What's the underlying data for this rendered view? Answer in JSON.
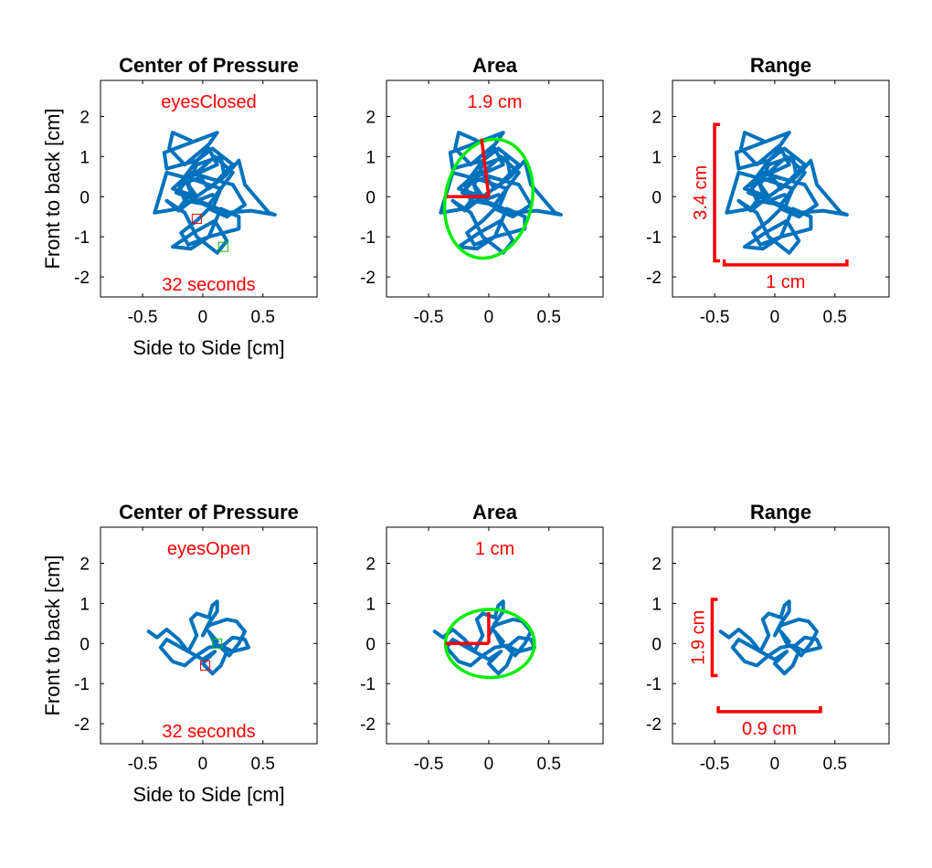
{
  "figure": {
    "colors": {
      "trace": "#0072bd",
      "annotation": "#ff0000",
      "ellipse": "#00ee00",
      "start_marker": "#ff0000",
      "end_marker": "#00c000",
      "axes": "#000000"
    }
  },
  "chart_data": [
    {
      "type": "line",
      "row": 0,
      "col": 0,
      "title": "Center of Pressure",
      "condition_label": "eyesClosed",
      "duration_label": "32 seconds",
      "xlabel": "Side to Side [cm]",
      "ylabel": "Front to back [cm]",
      "xlim": [
        -0.85,
        0.95
      ],
      "ylim": [
        -2.5,
        2.9
      ],
      "xticks": [
        {
          "v": -0.5,
          "label": "-0.5"
        },
        {
          "v": 0,
          "label": "0"
        },
        {
          "v": 0.5,
          "label": "0.5"
        }
      ],
      "yticks": [
        {
          "v": 2,
          "label": "2"
        },
        {
          "v": 1,
          "label": "1"
        },
        {
          "v": 0,
          "label": "0"
        },
        {
          "v": -1,
          "label": "-1"
        },
        {
          "v": -2,
          "label": "-2"
        }
      ],
      "series": [
        {
          "x": [
            -0.1,
            -0.25,
            -0.28,
            -0.15,
            0.05,
            0.12,
            -0.05,
            -0.32,
            -0.3,
            -0.05,
            0.08,
            0.25,
            0.12,
            -0.1,
            -0.25,
            -0.05,
            0.18,
            0.3,
            0.35,
            0.55,
            0.6,
            0.4,
            0.2,
            0.05,
            -0.15,
            -0.2,
            0.0,
            0.25,
            0.35,
            0.2,
            0.05,
            -0.05,
            -0.18,
            -0.12,
            0.05,
            0.3,
            0.3,
            0.15,
            0.05,
            -0.1,
            -0.25,
            -0.08,
            0.1,
            0.2,
            0.12,
            -0.05,
            -0.15,
            -0.3,
            -0.2,
            -0.05,
            -0.12,
            -0.05,
            0.15,
            0.18,
            0.05,
            -0.05,
            0.1,
            0.25,
            0.15,
            -0.05,
            -0.3,
            -0.4,
            -0.2,
            -0.1,
            -0.15,
            -0.05,
            0.05,
            0.12,
            -0.1,
            -0.22,
            0.05,
            0.15,
            0.08,
            -0.05,
            0.08
          ],
          "y": [
            1.4,
            1.6,
            1.2,
            0.8,
            1.3,
            1.6,
            1.4,
            1.1,
            0.7,
            0.9,
            1.2,
            0.8,
            0.4,
            0.6,
            0.2,
            0.0,
            0.5,
            0.9,
            0.3,
            -0.4,
            -0.45,
            -0.35,
            -0.4,
            -0.2,
            -0.1,
            0.3,
            0.5,
            0.3,
            -0.2,
            -0.5,
            -0.3,
            -0.6,
            -0.9,
            -1.2,
            -1.0,
            -0.8,
            -0.5,
            -0.3,
            -1.0,
            -1.3,
            -1.25,
            -0.9,
            -0.6,
            -1.1,
            -1.4,
            -1.0,
            -0.4,
            -0.1,
            -0.35,
            0.0,
            0.3,
            0.8,
            1.0,
            0.5,
            0.2,
            0.6,
            1.0,
            0.6,
            0.2,
            0.4,
            0.6,
            -0.4,
            -0.3,
            0.1,
            0.5,
            0.9,
            1.2,
            0.8,
            0.5,
            0.1,
            -0.2,
            0.2,
            -0.3,
            -0.1,
            0.05
          ]
        }
      ],
      "start_point": [
        -0.05,
        -0.55
      ],
      "end_point": [
        0.17,
        -1.25
      ]
    },
    {
      "type": "line",
      "row": 0,
      "col": 1,
      "title": "Area",
      "value_label": "1.9 cm",
      "xlim": [
        -0.85,
        0.95
      ],
      "ylim": [
        -2.5,
        2.9
      ],
      "xticks": [
        {
          "v": -0.5,
          "label": "-0.5"
        },
        {
          "v": 0,
          "label": "0"
        },
        {
          "v": 0.5,
          "label": "0.5"
        }
      ],
      "yticks": [
        {
          "v": 2,
          "label": "2"
        },
        {
          "v": 1,
          "label": "1"
        },
        {
          "v": 0,
          "label": "0"
        },
        {
          "v": -1,
          "label": "-1"
        },
        {
          "v": -2,
          "label": "-2"
        }
      ],
      "series_ref": 0,
      "ellipse": {
        "cx": 0.0,
        "cy": -0.05,
        "a": 0.36,
        "b": 1.5,
        "angle_deg": 12
      },
      "axis_lines": [
        [
          [
            -0.35,
            0.0
          ],
          [
            0.0,
            0.0
          ]
        ],
        [
          [
            0.0,
            0.0
          ],
          [
            -0.06,
            1.45
          ]
        ]
      ]
    },
    {
      "type": "line",
      "row": 0,
      "col": 2,
      "title": "Range",
      "x_range_label": "1 cm",
      "y_range_label": "3.4 cm",
      "xlim": [
        -0.85,
        0.95
      ],
      "ylim": [
        -2.5,
        2.9
      ],
      "xticks": [
        {
          "v": -0.5,
          "label": "-0.5"
        },
        {
          "v": 0,
          "label": "0"
        },
        {
          "v": 0.5,
          "label": "0.5"
        }
      ],
      "yticks": [
        {
          "v": 2,
          "label": "2"
        },
        {
          "v": 1,
          "label": "1"
        },
        {
          "v": 0,
          "label": "0"
        },
        {
          "v": -1,
          "label": "-1"
        },
        {
          "v": -2,
          "label": "-2"
        }
      ],
      "series_ref": 0,
      "x_range": [
        -0.42,
        0.6
      ],
      "x_range_at": -1.7,
      "y_range": [
        -1.6,
        1.8
      ],
      "y_range_at": -0.5
    },
    {
      "type": "line",
      "row": 1,
      "col": 0,
      "title": "Center of Pressure",
      "condition_label": "eyesOpen",
      "duration_label": "32 seconds",
      "xlabel": "Side to Side [cm]",
      "ylabel": "Front to back [cm]",
      "xlim": [
        -0.85,
        0.95
      ],
      "ylim": [
        -2.5,
        2.9
      ],
      "xticks": [
        {
          "v": -0.5,
          "label": "-0.5"
        },
        {
          "v": 0,
          "label": "0"
        },
        {
          "v": 0.5,
          "label": "0.5"
        }
      ],
      "yticks": [
        {
          "v": 2,
          "label": "2"
        },
        {
          "v": 1,
          "label": "1"
        },
        {
          "v": 0,
          "label": "0"
        },
        {
          "v": -1,
          "label": "-1"
        },
        {
          "v": -2,
          "label": "-2"
        }
      ],
      "series": [
        {
          "x": [
            -0.45,
            -0.38,
            -0.3,
            -0.2,
            -0.12,
            -0.05,
            -0.1,
            -0.05,
            0.05,
            0.08,
            0.12,
            0.12,
            0.05,
            0.0,
            0.05,
            0.2,
            0.28,
            0.35,
            0.3,
            0.22,
            0.15,
            0.25,
            0.35,
            0.38,
            0.25,
            0.15,
            0.05,
            -0.05,
            -0.15,
            -0.25,
            -0.35,
            -0.3,
            -0.15,
            0.0,
            0.1,
            0.0,
            0.08,
            0.15,
            0.2,
            0.1,
            0.05,
            0.12
          ],
          "y": [
            0.3,
            0.15,
            0.35,
            0.1,
            -0.2,
            0.2,
            0.6,
            0.75,
            0.65,
            0.95,
            1.05,
            0.8,
            0.5,
            0.2,
            0.45,
            0.6,
            0.55,
            0.3,
            0.0,
            -0.3,
            -0.1,
            0.15,
            0.1,
            -0.1,
            -0.2,
            -0.05,
            -0.1,
            -0.3,
            -0.55,
            -0.45,
            -0.1,
            0.1,
            -0.15,
            -0.4,
            -0.2,
            -0.5,
            -0.75,
            -0.55,
            -0.2,
            0.0,
            0.3,
            0.05
          ]
        }
      ],
      "start_point": [
        0.02,
        -0.55
      ],
      "end_point": [
        0.12,
        0.0
      ]
    },
    {
      "type": "line",
      "row": 1,
      "col": 1,
      "title": "Area",
      "value_label": "1 cm",
      "xlim": [
        -0.85,
        0.95
      ],
      "ylim": [
        -2.5,
        2.9
      ],
      "xticks": [
        {
          "v": -0.5,
          "label": "-0.5"
        },
        {
          "v": 0,
          "label": "0"
        },
        {
          "v": 0.5,
          "label": "0.5"
        }
      ],
      "yticks": [
        {
          "v": 2,
          "label": "2"
        },
        {
          "v": 1,
          "label": "1"
        },
        {
          "v": 0,
          "label": "0"
        },
        {
          "v": -1,
          "label": "-1"
        },
        {
          "v": -2,
          "label": "-2"
        }
      ],
      "series_ref": 3,
      "ellipse": {
        "cx": 0.01,
        "cy": 0.0,
        "a": 0.37,
        "b": 0.85,
        "angle_deg": 0
      },
      "axis_lines": [
        [
          [
            -0.36,
            0.0
          ],
          [
            0.0,
            0.0
          ]
        ],
        [
          [
            0.0,
            0.0
          ],
          [
            0.0,
            0.78
          ]
        ]
      ]
    },
    {
      "type": "line",
      "row": 1,
      "col": 2,
      "title": "Range",
      "x_range_label": "0.9 cm",
      "y_range_label": "1.9 cm",
      "xlim": [
        -0.85,
        0.95
      ],
      "ylim": [
        -2.5,
        2.9
      ],
      "xticks": [
        {
          "v": -0.5,
          "label": "-0.5"
        },
        {
          "v": 0,
          "label": "0"
        },
        {
          "v": 0.5,
          "label": "0.5"
        }
      ],
      "yticks": [
        {
          "v": 2,
          "label": "2"
        },
        {
          "v": 1,
          "label": "1"
        },
        {
          "v": 0,
          "label": "0"
        },
        {
          "v": -1,
          "label": "-1"
        },
        {
          "v": -2,
          "label": "-2"
        }
      ],
      "series_ref": 3,
      "x_range": [
        -0.47,
        0.38
      ],
      "x_range_at": -1.7,
      "y_range": [
        -0.8,
        1.1
      ],
      "y_range_at": -0.52
    }
  ]
}
